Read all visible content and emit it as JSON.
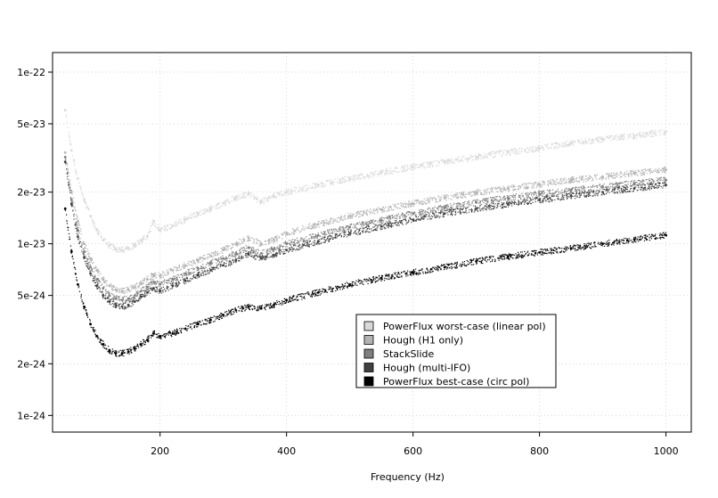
{
  "chart_data": {
    "type": "scatter",
    "title": "",
    "xlabel": "Frequency (Hz)",
    "ylabel": "",
    "x_scale": "linear",
    "y_scale": "log",
    "xlim": [
      30,
      1040
    ],
    "ylim": [
      8e-25,
      1.3e-22
    ],
    "x_ticks": [
      200,
      400,
      600,
      800,
      1000
    ],
    "x_tick_labels": [
      "200",
      "400",
      "600",
      "800",
      "1000"
    ],
    "y_ticks": [
      1e-24,
      2e-24,
      5e-24,
      1e-23,
      2e-23,
      5e-23,
      1e-22
    ],
    "y_tick_labels": [
      "1e-24",
      "2e-24",
      "5e-24",
      "1e-23",
      "2e-23",
      "5e-23",
      "1e-22"
    ],
    "grid": true,
    "legend_position": "bottom-right",
    "series": [
      {
        "name": "PowerFlux worst-case (linear pol)",
        "color": "#d9d9d9",
        "x": [
          50,
          60,
          70,
          80,
          90,
          100,
          110,
          120,
          130,
          140,
          150,
          160,
          170,
          180,
          190,
          200,
          220,
          240,
          260,
          280,
          300,
          320,
          340,
          360,
          380,
          400,
          450,
          500,
          550,
          600,
          650,
          700,
          750,
          800,
          850,
          900,
          950,
          1000
        ],
        "y": [
          6e-23,
          3.5e-23,
          2.4e-23,
          1.8e-23,
          1.45e-23,
          1.2e-23,
          1.05e-23,
          9.8e-24,
          9.3e-24,
          9.2e-24,
          9.4e-24,
          9.8e-24,
          1.05e-23,
          1.1e-23,
          1.35e-23,
          1.2e-23,
          1.28e-23,
          1.38e-23,
          1.5e-23,
          1.6e-23,
          1.72e-23,
          1.85e-23,
          1.95e-23,
          1.75e-23,
          1.9e-23,
          2e-23,
          2.2e-23,
          2.4e-23,
          2.6e-23,
          2.8e-23,
          3e-23,
          3.2e-23,
          3.4e-23,
          3.6e-23,
          3.85e-23,
          4.05e-23,
          4.25e-23,
          4.5e-23
        ]
      },
      {
        "name": "Hough (H1 only)",
        "color": "#b3b3b3",
        "x": [
          50,
          60,
          70,
          80,
          90,
          100,
          110,
          120,
          130,
          140,
          150,
          160,
          170,
          180,
          190,
          200,
          220,
          240,
          260,
          280,
          300,
          320,
          340,
          360,
          380,
          400,
          450,
          500,
          550,
          600,
          650,
          700,
          750,
          800,
          850,
          900,
          950,
          1000
        ],
        "y": [
          3.4e-23,
          2e-23,
          1.35e-23,
          1e-23,
          8.2e-24,
          7e-24,
          6.2e-24,
          5.7e-24,
          5.4e-24,
          5.3e-24,
          5.4e-24,
          5.6e-24,
          5.9e-24,
          6.2e-24,
          6.6e-24,
          6.5e-24,
          7e-24,
          7.5e-24,
          8e-24,
          8.5e-24,
          9.2e-24,
          1e-23,
          1.08e-23,
          1e-23,
          1.05e-23,
          1.15e-23,
          1.3e-23,
          1.45e-23,
          1.58e-23,
          1.72e-23,
          1.85e-23,
          1.98e-23,
          2.1e-23,
          2.22e-23,
          2.35e-23,
          2.45e-23,
          2.58e-23,
          2.7e-23
        ]
      },
      {
        "name": "StackSlide",
        "color": "#7f7f7f",
        "x": [
          50,
          60,
          70,
          80,
          90,
          100,
          110,
          120,
          130,
          140,
          150,
          160,
          170,
          180,
          190,
          200,
          220,
          240,
          260,
          280,
          300,
          320,
          340,
          360,
          380,
          400,
          450,
          500,
          550,
          600,
          650,
          700,
          750,
          800,
          850,
          900,
          950,
          1000
        ],
        "y": [
          3.2e-23,
          1.8e-23,
          1.2e-23,
          9e-24,
          7.3e-24,
          6.2e-24,
          5.5e-24,
          5e-24,
          4.8e-24,
          4.7e-24,
          4.8e-24,
          5e-24,
          5.3e-24,
          5.6e-24,
          6e-24,
          5.8e-24,
          6.2e-24,
          6.7e-24,
          7.2e-24,
          7.7e-24,
          8.2e-24,
          8.8e-24,
          9.5e-24,
          8.8e-24,
          9.3e-24,
          1e-23,
          1.12e-23,
          1.25e-23,
          1.37e-23,
          1.5e-23,
          1.62e-23,
          1.74e-23,
          1.85e-23,
          1.95e-23,
          2.05e-23,
          2.15e-23,
          2.25e-23,
          2.35e-23
        ]
      },
      {
        "name": "Hough (multi-IFO)",
        "color": "#404040",
        "x": [
          50,
          60,
          70,
          80,
          90,
          100,
          110,
          120,
          130,
          140,
          150,
          160,
          170,
          180,
          190,
          200,
          220,
          240,
          260,
          280,
          300,
          320,
          340,
          360,
          380,
          400,
          450,
          500,
          550,
          600,
          650,
          700,
          750,
          800,
          850,
          900,
          950,
          1000
        ],
        "y": [
          3e-23,
          1.7e-23,
          1.1e-23,
          8.3e-24,
          6.7e-24,
          5.7e-24,
          5e-24,
          4.6e-24,
          4.4e-24,
          4.3e-24,
          4.4e-24,
          4.6e-24,
          4.9e-24,
          5.2e-24,
          5.5e-24,
          5.3e-24,
          5.7e-24,
          6.1e-24,
          6.6e-24,
          7e-24,
          7.5e-24,
          8e-24,
          8.7e-24,
          8.2e-24,
          8.6e-24,
          9.2e-24,
          1.03e-23,
          1.15e-23,
          1.26e-23,
          1.38e-23,
          1.5e-23,
          1.6e-23,
          1.7e-23,
          1.8e-23,
          1.9e-23,
          2e-23,
          2.1e-23,
          2.2e-23
        ]
      },
      {
        "name": "PowerFlux best-case (circ pol)",
        "color": "#000000",
        "x": [
          50,
          60,
          70,
          80,
          90,
          100,
          110,
          120,
          130,
          140,
          150,
          160,
          170,
          180,
          190,
          200,
          220,
          240,
          260,
          280,
          300,
          320,
          340,
          360,
          380,
          400,
          450,
          500,
          550,
          600,
          650,
          700,
          750,
          800,
          850,
          900,
          950,
          1000
        ],
        "y": [
          1.6e-23,
          9e-24,
          5.8e-24,
          4.3e-24,
          3.4e-24,
          2.9e-24,
          2.6e-24,
          2.4e-24,
          2.3e-24,
          2.3e-24,
          2.35e-24,
          2.45e-24,
          2.6e-24,
          2.75e-24,
          3e-24,
          2.9e-24,
          3e-24,
          3.2e-24,
          3.4e-24,
          3.6e-24,
          3.85e-24,
          4.1e-24,
          4.3e-24,
          4.2e-24,
          4.4e-24,
          4.7e-24,
          5.2e-24,
          5.8e-24,
          6.3e-24,
          6.8e-24,
          7.3e-24,
          7.9e-24,
          8.4e-24,
          8.9e-24,
          9.4e-24,
          1e-23,
          1.06e-23,
          1.12e-23
        ]
      }
    ]
  }
}
